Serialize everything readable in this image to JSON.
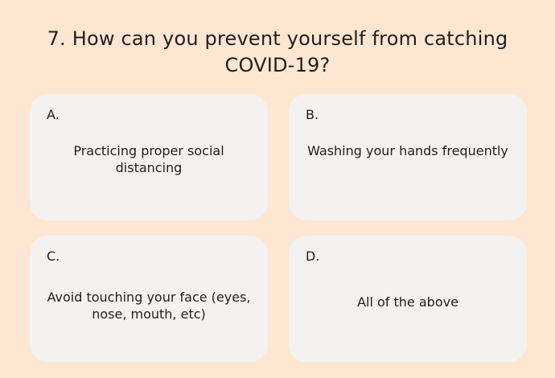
{
  "question": {
    "text": "7. How can you prevent yourself from catching COVID-19?"
  },
  "options": [
    {
      "letter": "A.",
      "text": "Practicing proper social distancing"
    },
    {
      "letter": "B.",
      "text": "Washing your hands frequently"
    },
    {
      "letter": "C.",
      "text": "Avoid touching your face (eyes, nose, mouth, etc)"
    },
    {
      "letter": "D.",
      "text": "All of the above"
    }
  ],
  "colors": {
    "background": "#fde6d2",
    "card": "#f4f2f0",
    "text": "#1f1f1f"
  }
}
